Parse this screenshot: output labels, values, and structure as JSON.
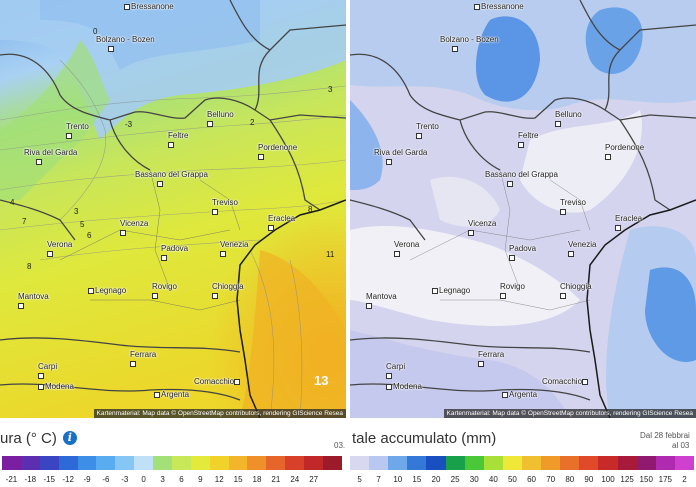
{
  "temperature_map": {
    "cities": [
      "Bressanone",
      "Bolzano - Bozen",
      "Trento",
      "Riva del Garda",
      "Feltre",
      "Belluno",
      "Pordenone",
      "Bassano del Grappa",
      "Treviso",
      "Eraclea",
      "Vicenza",
      "Padova",
      "Venezia",
      "Verona",
      "Legnago",
      "Chioggia",
      "Mantova",
      "Rovigo",
      "Ferrara",
      "Carpi",
      "Modena",
      "Argenta",
      "Comacchio"
    ],
    "iso_labels": [
      "0",
      "-3",
      "3",
      "2",
      "4",
      "3",
      "5",
      "6",
      "7",
      "8",
      "8",
      "11",
      "13"
    ],
    "attribution": "Kartenmaterial: Map data © OpenStreetMap contributors, rendering GIScience Resea"
  },
  "precip_map": {
    "cities": [
      "Bressanone",
      "Bolzano - Bozen",
      "Trento",
      "Riva del Garda",
      "Feltre",
      "Belluno",
      "Pordenone",
      "Bassano del Grappa",
      "Treviso",
      "Eraclea",
      "Vicenza",
      "Padova",
      "Venezia",
      "Verona",
      "Legnago",
      "Chioggia",
      "Mantova",
      "Rovigo",
      "Ferrara",
      "Carpi",
      "Modena",
      "Argenta",
      "Comacchio"
    ],
    "attribution": "Kartenmaterial: Map data © OpenStreetMap contributors, rendering GIScience Resea"
  },
  "temp_legend": {
    "title": "ura (° C)",
    "date_fragment": "03.",
    "ticks": [
      "-21",
      "-18",
      "-15",
      "-12",
      "-9",
      "-6",
      "-3",
      "0",
      "3",
      "6",
      "9",
      "12",
      "15",
      "18",
      "21",
      "24",
      "27"
    ],
    "colors": [
      "#7a1fa2",
      "#5b2fb0",
      "#3b45c4",
      "#2d6ad8",
      "#3d8ee6",
      "#5aacf0",
      "#86c6f5",
      "#bfe0f7",
      "#a4e07a",
      "#c8e85a",
      "#e4ea3c",
      "#f1d22a",
      "#f3b52a",
      "#f0902a",
      "#e6652a",
      "#d8402a",
      "#c0282a",
      "#9c1a2a"
    ]
  },
  "precip_legend": {
    "title": "tale accumulato (mm)",
    "date_line1": "Dal 28 febbrai",
    "date_line2": "al 03",
    "ticks": [
      "5",
      "7",
      "10",
      "15",
      "20",
      "25",
      "30",
      "40",
      "50",
      "60",
      "70",
      "80",
      "90",
      "100",
      "125",
      "150",
      "175",
      "2"
    ],
    "colors": [
      "#d8d8f0",
      "#b8c8f0",
      "#6fa8ea",
      "#3478d8",
      "#1a4fc0",
      "#18a04a",
      "#4ac838",
      "#a8e038",
      "#f0e838",
      "#f0c030",
      "#f09a2a",
      "#e8702a",
      "#e04a2a",
      "#c82a2a",
      "#a81a3a",
      "#901a70",
      "#b02ab0",
      "#d040d0"
    ]
  }
}
